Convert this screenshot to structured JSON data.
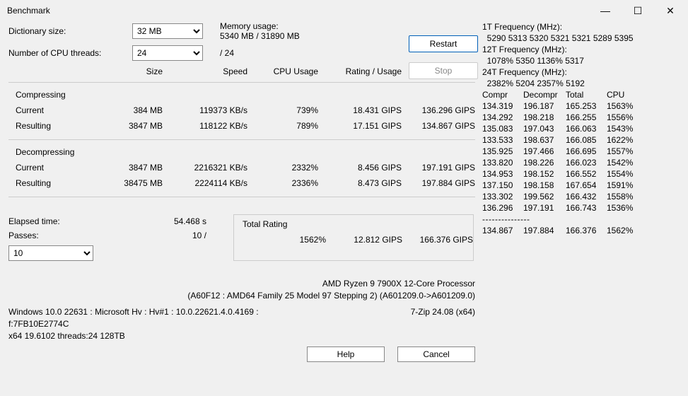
{
  "window": {
    "title": "Benchmark",
    "minimize": "—",
    "maximize": "☐",
    "close": "✕"
  },
  "labels": {
    "dictionary_size": "Dictionary size:",
    "num_threads": "Number of CPU threads:",
    "memory_usage_label": "Memory usage:",
    "thread_suffix": "/ 24",
    "elapsed_time": "Elapsed time:",
    "passes": "Passes:",
    "total_rating": "Total Rating"
  },
  "selects": {
    "dictionary_value": "32 MB",
    "threads_value": "24",
    "passes_value": "10"
  },
  "memory_usage": "5340 MB / 31890 MB",
  "buttons": {
    "restart": "Restart",
    "stop": "Stop",
    "help": "Help",
    "cancel": "Cancel"
  },
  "table": {
    "headers": {
      "size": "Size",
      "speed": "Speed",
      "cpu_usage": "CPU Usage",
      "rating_usage": "Rating / Usage",
      "rating": "Rating"
    },
    "compressing_title": "Compressing",
    "decompressing_title": "Decompressing",
    "compressing": {
      "current": {
        "label": "Current",
        "size": "384 MB",
        "speed": "119373 KB/s",
        "cpu": "739%",
        "ru": "18.431 GIPS",
        "rating": "136.296 GIPS"
      },
      "resulting": {
        "label": "Resulting",
        "size": "3847 MB",
        "speed": "118122 KB/s",
        "cpu": "789%",
        "ru": "17.151 GIPS",
        "rating": "134.867 GIPS"
      }
    },
    "decompressing": {
      "current": {
        "label": "Current",
        "size": "3847 MB",
        "speed": "2216321 KB/s",
        "cpu": "2332%",
        "ru": "8.456 GIPS",
        "rating": "197.191 GIPS"
      },
      "resulting": {
        "label": "Resulting",
        "size": "38475 MB",
        "speed": "2224114 KB/s",
        "cpu": "2336%",
        "ru": "8.473 GIPS",
        "rating": "197.884 GIPS"
      }
    }
  },
  "elapsed_value": "54.468 s",
  "passes_count": "10 /",
  "total": {
    "cpu": "1562%",
    "ru": "12.812 GIPS",
    "rating": "166.376 GIPS"
  },
  "cpu_info": {
    "line1": "AMD Ryzen 9 7900X 12-Core Processor",
    "line2": "(A60F12 : AMD64 Family 25 Model 97 Stepping 2) (A601209.0->A601209.0)"
  },
  "os_info": {
    "left1": "Windows 10.0 22631 : Microsoft Hv : Hv#1 : 10.0.22621.4.0.4169 :",
    "left2": "f:7FB10E2774C",
    "left3": "x64 19.6102 threads:24 128TB",
    "right": "7-Zip 24.08 (x64)"
  },
  "side": {
    "freq1_label": "1T Frequency (MHz):",
    "freq1_value": "  5290 5313 5320 5321 5321 5289 5395",
    "freq12_label": "12T Frequency (MHz):",
    "freq12_value": "  1078% 5350 1136% 5317",
    "freq24_label": "24T Frequency (MHz):",
    "freq24_value": "  2382% 5204 2357% 5192",
    "header": {
      "c1": "Compr",
      "c2": "Decompr",
      "c3": "Total",
      "c4": "CPU"
    },
    "rows": [
      {
        "c1": "134.319",
        "c2": "196.187",
        "c3": "165.253",
        "c4": "1563%"
      },
      {
        "c1": "134.292",
        "c2": "198.218",
        "c3": "166.255",
        "c4": "1556%"
      },
      {
        "c1": "135.083",
        "c2": "197.043",
        "c3": "166.063",
        "c4": "1543%"
      },
      {
        "c1": "133.533",
        "c2": "198.637",
        "c3": "166.085",
        "c4": "1622%"
      },
      {
        "c1": "135.925",
        "c2": "197.466",
        "c3": "166.695",
        "c4": "1557%"
      },
      {
        "c1": "133.820",
        "c2": "198.226",
        "c3": "166.023",
        "c4": "1542%"
      },
      {
        "c1": "134.953",
        "c2": "198.152",
        "c3": "166.552",
        "c4": "1554%"
      },
      {
        "c1": "137.150",
        "c2": "198.158",
        "c3": "167.654",
        "c4": "1591%"
      },
      {
        "c1": "133.302",
        "c2": "199.562",
        "c3": "166.432",
        "c4": "1558%"
      },
      {
        "c1": "136.296",
        "c2": "197.191",
        "c3": "166.743",
        "c4": "1536%"
      }
    ],
    "divider": "---------------",
    "summary": {
      "c1": "134.867",
      "c2": "197.884",
      "c3": "166.376",
      "c4": "1562%"
    }
  }
}
